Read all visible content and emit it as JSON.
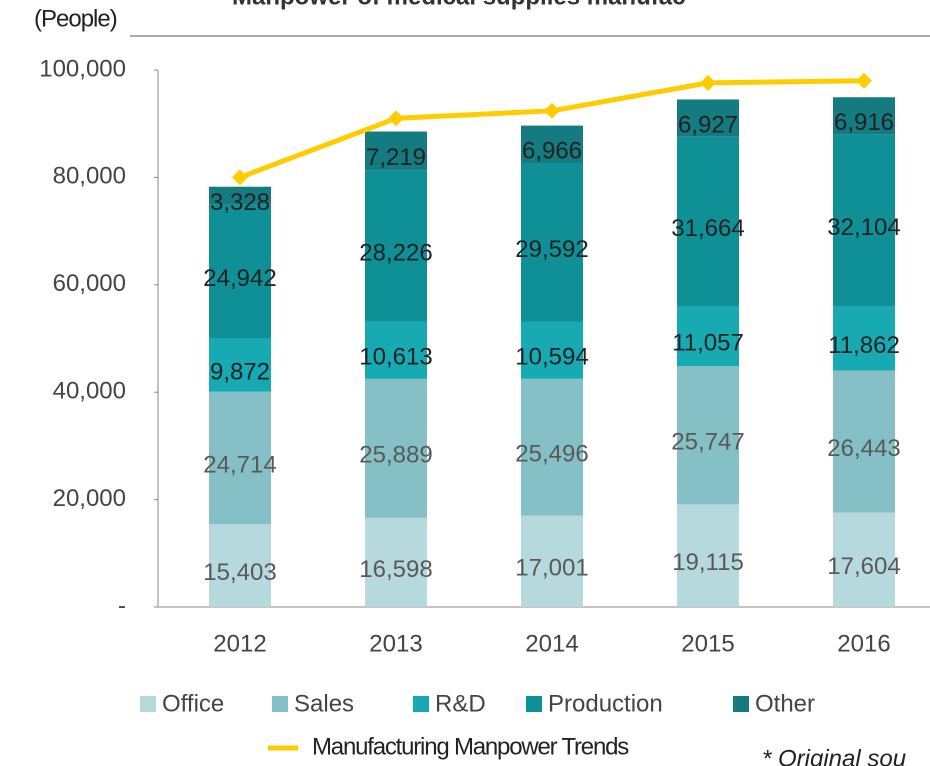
{
  "chart_data": {
    "type": "bar",
    "title": "Manpower of medical supplies manufac",
    "y_axis_label": "(People)",
    "note": "* Original sou",
    "categories": [
      "2012",
      "2013",
      "2014",
      "2015",
      "2016"
    ],
    "stacked": true,
    "series": [
      {
        "name": "Office",
        "color": "#b5d9dc",
        "values": [
          15403,
          16598,
          17001,
          19115,
          17604
        ],
        "value_labels": [
          "15,403",
          "16,598",
          "17,001",
          "19,115",
          "17,604"
        ]
      },
      {
        "name": "Sales",
        "color": "#84c0c5",
        "values": [
          24714,
          25889,
          25496,
          25747,
          26443
        ],
        "value_labels": [
          "24,714",
          "25,889",
          "25,496",
          "25,747",
          "26,443"
        ]
      },
      {
        "name": "R&D",
        "color": "#17aab3",
        "values": [
          9872,
          10613,
          10594,
          11057,
          11862
        ],
        "value_labels": [
          "9,872",
          "10,613",
          "10,594",
          "11,057",
          "11,862"
        ]
      },
      {
        "name": "Production",
        "color": "#0f9097",
        "values": [
          24942,
          28226,
          29592,
          31664,
          32104
        ],
        "value_labels": [
          "24,942",
          "28,226",
          "29,592",
          "31,664",
          "32,104"
        ]
      },
      {
        "name": "Other",
        "color": "#147b80",
        "values": [
          3328,
          7219,
          6966,
          6927,
          6916
        ],
        "value_labels": [
          "3,328",
          "7,219",
          "6,966",
          "6,927",
          "6,916"
        ]
      }
    ],
    "line_series": {
      "name": "Manufacturing Manpower Trends",
      "color": "#ffcc00",
      "values": [
        80000,
        91000,
        92400,
        97600,
        98000
      ]
    },
    "ylim": [
      0,
      100000
    ],
    "yticks": [
      {
        "value": 0,
        "label": "-"
      },
      {
        "value": 20000,
        "label": "20,000"
      },
      {
        "value": 40000,
        "label": "40,000"
      },
      {
        "value": 60000,
        "label": "60,000"
      },
      {
        "value": 80000,
        "label": "80,000"
      },
      {
        "value": 100000,
        "label": "100,000"
      }
    ],
    "grid": false
  }
}
